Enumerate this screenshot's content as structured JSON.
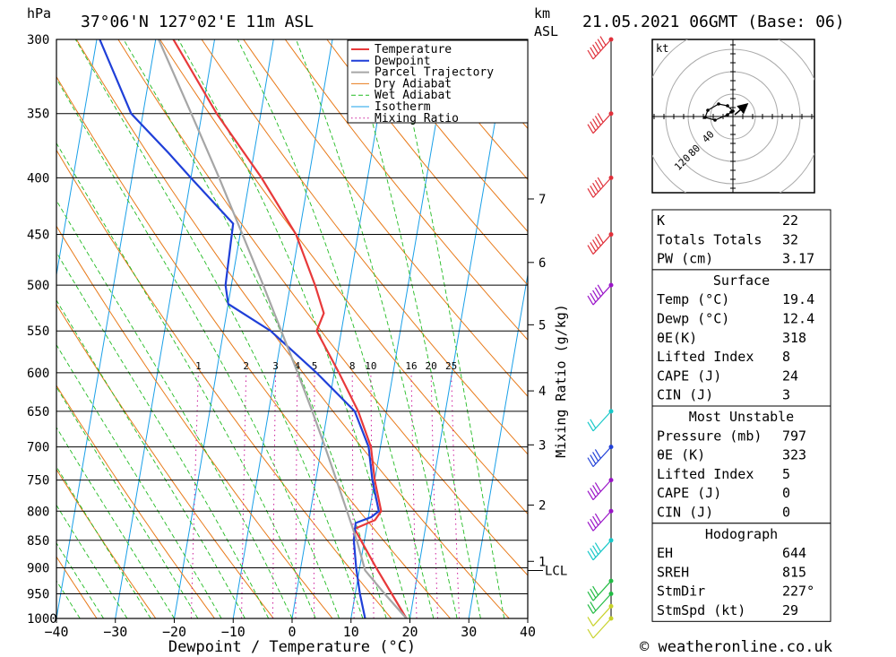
{
  "header": {
    "unit_left": "hPa",
    "location": "37°06'N  127°02'E  11m  ASL",
    "unit_km": "km",
    "unit_asl": "ASL",
    "datetime": "21.05.2021  06GMT  (Base: 06)"
  },
  "chart_data": {
    "type": "skew-t log-p diagram",
    "xlabel": "Dewpoint / Temperature (°C)",
    "ylabel_left": "hPa",
    "ylabel_right": "Mixing Ratio (g/kg)",
    "x_ticks": [
      -40,
      -30,
      -20,
      -10,
      0,
      10,
      20,
      30,
      40
    ],
    "xlim": [
      -40,
      40
    ],
    "pressure_levels": [
      300,
      350,
      400,
      450,
      500,
      550,
      600,
      650,
      700,
      750,
      800,
      850,
      900,
      950,
      1000
    ],
    "height_ticks_km": [
      {
        "label": "1",
        "pressure": 888
      },
      {
        "label": "2",
        "pressure": 790
      },
      {
        "label": "3",
        "pressure": 697
      },
      {
        "label": "4",
        "pressure": 623
      },
      {
        "label": "5",
        "pressure": 543
      },
      {
        "label": "6",
        "pressure": 477
      },
      {
        "label": "7",
        "pressure": 418
      }
    ],
    "lcl_label": "LCL",
    "lcl_pressure": 905,
    "mixing_ratio_labels": [
      "1",
      "2",
      "3",
      "4",
      "5",
      "8",
      "10",
      "16",
      "20",
      "25"
    ],
    "mixing_ratio_values": [
      1,
      2,
      3,
      4,
      5,
      8,
      10,
      16,
      20,
      25
    ],
    "legend": [
      "Temperature",
      "Dewpoint",
      "Parcel Trajectory",
      "Dry Adiabat",
      "Wet Adiabat",
      "Isotherm",
      "Mixing Ratio"
    ],
    "series": [
      {
        "name": "Temperature",
        "points": [
          [
            1000,
            19.4
          ],
          [
            950,
            16.2
          ],
          [
            900,
            12.8
          ],
          [
            850,
            9.4
          ],
          [
            830,
            8.0
          ],
          [
            815,
            11.2
          ],
          [
            800,
            12.0
          ],
          [
            750,
            10.0
          ],
          [
            700,
            8.4
          ],
          [
            650,
            5.2
          ],
          [
            600,
            0.8
          ],
          [
            550,
            -4.2
          ],
          [
            530,
            -3.5
          ],
          [
            500,
            -5.8
          ],
          [
            450,
            -10.5
          ],
          [
            400,
            -18.0
          ],
          [
            350,
            -27.5
          ],
          [
            300,
            -37.0
          ]
        ]
      },
      {
        "name": "Dewpoint",
        "points": [
          [
            1000,
            12.4
          ],
          [
            950,
            10.8
          ],
          [
            900,
            9.4
          ],
          [
            850,
            8.2
          ],
          [
            820,
            8.0
          ],
          [
            810,
            10.5
          ],
          [
            800,
            11.6
          ],
          [
            750,
            9.6
          ],
          [
            700,
            8.0
          ],
          [
            650,
            4.6
          ],
          [
            600,
            -3.0
          ],
          [
            550,
            -12.0
          ],
          [
            520,
            -20.0
          ],
          [
            500,
            -21.0
          ],
          [
            440,
            -21.5
          ],
          [
            400,
            -30.0
          ],
          [
            380,
            -34.5
          ],
          [
            350,
            -42.0
          ],
          [
            300,
            -49.5
          ]
        ]
      },
      {
        "name": "Parcel Trajectory",
        "points": [
          [
            1000,
            19.4
          ],
          [
            950,
            15.0
          ],
          [
            905,
            11.0
          ],
          [
            850,
            8.7
          ],
          [
            800,
            6.2
          ],
          [
            750,
            3.5
          ],
          [
            700,
            0.6
          ],
          [
            650,
            -2.6
          ],
          [
            600,
            -6.2
          ],
          [
            550,
            -10.2
          ],
          [
            500,
            -14.6
          ],
          [
            450,
            -19.6
          ],
          [
            400,
            -25.2
          ],
          [
            350,
            -31.8
          ],
          [
            300,
            -39.5
          ]
        ]
      }
    ],
    "wind_barbs": [
      {
        "pressure": 1000,
        "speed_kt": 5,
        "color": "yellow-green"
      },
      {
        "pressure": 975,
        "speed_kt": 10,
        "color": "yellow-green"
      },
      {
        "pressure": 950,
        "speed_kt": 15,
        "color": "green"
      },
      {
        "pressure": 925,
        "speed_kt": 25,
        "color": "green"
      },
      {
        "pressure": 850,
        "speed_kt": 35,
        "color": "cyan"
      },
      {
        "pressure": 800,
        "speed_kt": 40,
        "color": "purple"
      },
      {
        "pressure": 750,
        "speed_kt": 40,
        "color": "purple"
      },
      {
        "pressure": 700,
        "speed_kt": 35,
        "color": "blue"
      },
      {
        "pressure": 650,
        "speed_kt": 15,
        "color": "cyan"
      },
      {
        "pressure": 500,
        "speed_kt": 45,
        "color": "purple"
      },
      {
        "pressure": 450,
        "speed_kt": 50,
        "color": "red"
      },
      {
        "pressure": 400,
        "speed_kt": 50,
        "color": "red"
      },
      {
        "pressure": 350,
        "speed_kt": 50,
        "color": "red"
      },
      {
        "pressure": 300,
        "speed_kt": 60,
        "color": "red"
      }
    ],
    "hodograph": {
      "unit_label": "kt",
      "ring_labels": [
        "40",
        "80",
        "120"
      ],
      "storm_motion_dir_deg": 227,
      "storm_motion_speed_kt": 29
    }
  },
  "indices": {
    "rows": [
      {
        "label": "K",
        "value": "22"
      },
      {
        "label": "Totals Totals",
        "value": "32"
      },
      {
        "label": "PW (cm)",
        "value": "3.17"
      }
    ]
  },
  "surface": {
    "title": "Surface",
    "rows": [
      {
        "label": "Temp (°C)",
        "value": "19.4"
      },
      {
        "label": "Dewp (°C)",
        "value": "12.4"
      },
      {
        "label": "θE(K)",
        "value": "318"
      },
      {
        "label": "Lifted Index",
        "value": "8"
      },
      {
        "label": "CAPE (J)",
        "value": "24"
      },
      {
        "label": "CIN (J)",
        "value": "3"
      }
    ]
  },
  "most_unstable": {
    "title": "Most Unstable",
    "rows": [
      {
        "label": "Pressure (mb)",
        "value": "797"
      },
      {
        "label": "θE (K)",
        "value": "323"
      },
      {
        "label": "Lifted Index",
        "value": "5"
      },
      {
        "label": "CAPE (J)",
        "value": "0"
      },
      {
        "label": "CIN (J)",
        "value": "0"
      }
    ]
  },
  "hodograph_table": {
    "title": "Hodograph",
    "rows": [
      {
        "label": "EH",
        "value": "644"
      },
      {
        "label": "SREH",
        "value": "815"
      },
      {
        "label": "StmDir",
        "value": "227°"
      },
      {
        "label": "StmSpd (kt)",
        "value": "29"
      }
    ]
  },
  "footer": {
    "credit": "© weatheronline.co.uk"
  },
  "colors": {
    "temperature": "#e8393a",
    "dewpoint": "#1f3fd8",
    "parcel": "#a6a6a6",
    "dry_adiabat": "#e87a1a",
    "wet_adiabat": "#22bb22",
    "isotherm": "#1aa0e8",
    "mixing_ratio": "#cc1a9a"
  }
}
